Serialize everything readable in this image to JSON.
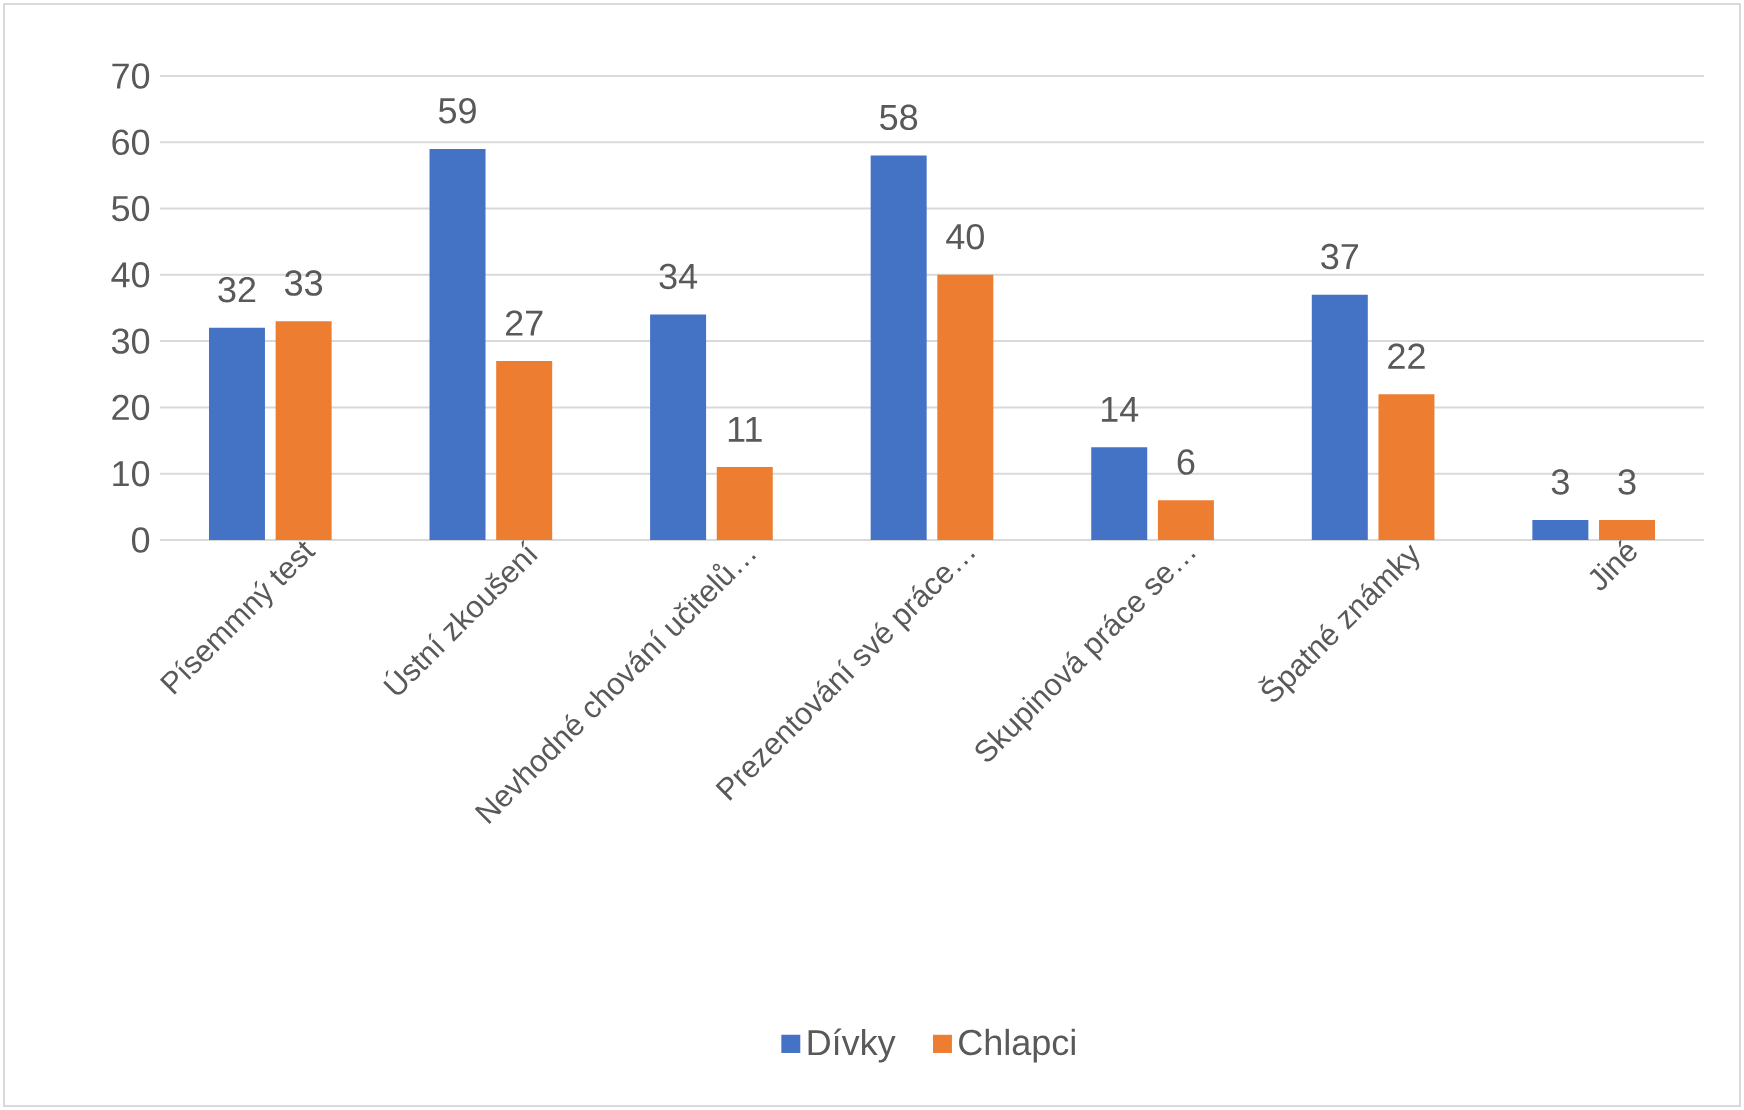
{
  "chart_data": {
    "type": "bar",
    "categories": [
      "Písemmný test",
      "Ústní zkoušení",
      "Nevhodné chování učitelů…",
      "Prezentování své práce…",
      "Skupinová práce se…",
      "Špatné známky",
      "Jiné"
    ],
    "series": [
      {
        "name": "Dívky",
        "color": "#4472c4",
        "values": [
          32,
          59,
          34,
          58,
          14,
          37,
          3
        ]
      },
      {
        "name": "Chlapci",
        "color": "#ed7d31",
        "values": [
          33,
          27,
          11,
          40,
          6,
          22,
          3
        ]
      }
    ],
    "ylim": [
      0,
      70
    ],
    "yticks": [
      0,
      10,
      20,
      30,
      40,
      50,
      60,
      70
    ],
    "grid": "y",
    "legend": "bottom",
    "data_labels": true
  }
}
